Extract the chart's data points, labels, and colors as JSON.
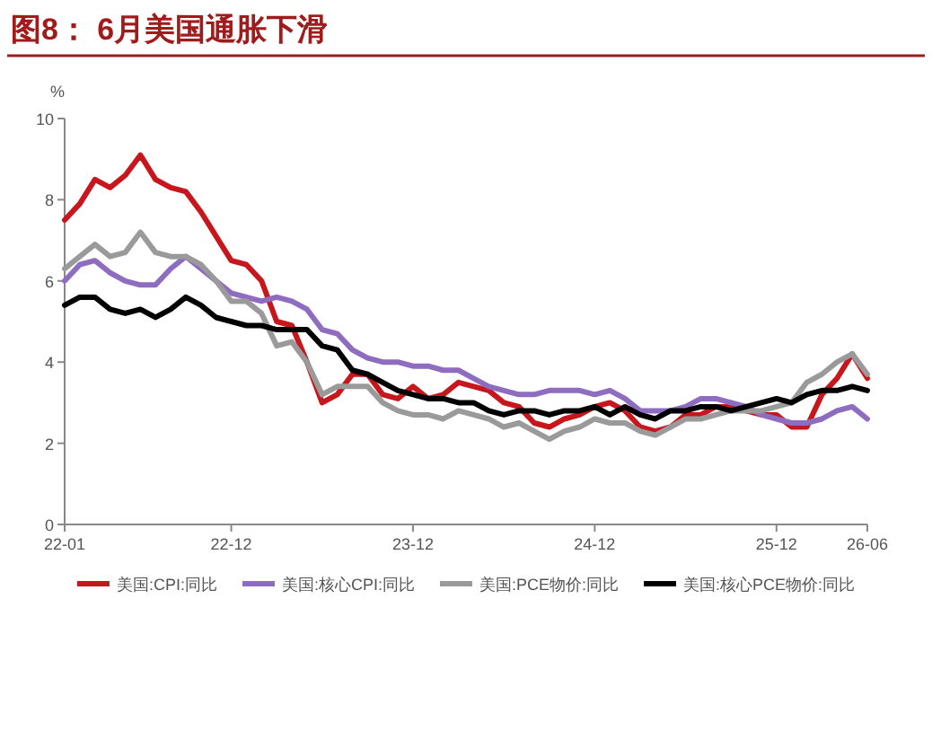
{
  "chart_data": {
    "type": "line",
    "title": "图8：  6月美国通胀下滑",
    "ylabel": "%",
    "categories": [
      "22-01",
      null,
      null,
      null,
      null,
      null,
      null,
      null,
      null,
      null,
      null,
      "22-12",
      null,
      null,
      null,
      null,
      null,
      null,
      null,
      null,
      null,
      null,
      null,
      "23-12",
      null,
      null,
      null,
      null,
      null,
      null,
      null,
      null,
      null,
      null,
      null,
      "24-12",
      null,
      null,
      null,
      null,
      null,
      null,
      null,
      null,
      null,
      null,
      null,
      "25-12",
      null,
      null,
      null,
      null,
      null,
      "26-06"
    ],
    "ylim": [
      0,
      10
    ],
    "yticks": [
      0,
      2,
      4,
      6,
      8,
      10
    ],
    "grid": false,
    "legend": "bottom",
    "marker": "none",
    "line_style": "solid",
    "series": [
      {
        "name": "美国:CPI:同比",
        "color": "#c8161d",
        "values": [
          7.5,
          7.9,
          8.5,
          8.3,
          8.6,
          9.1,
          8.5,
          8.3,
          8.2,
          7.7,
          7.1,
          6.5,
          6.4,
          6.0,
          5.0,
          4.9,
          4.0,
          3.0,
          3.2,
          3.7,
          3.7,
          3.2,
          3.1,
          3.4,
          3.1,
          3.2,
          3.5,
          3.4,
          3.3,
          3.0,
          2.9,
          2.5,
          2.4,
          2.6,
          2.7,
          2.9,
          3.0,
          2.8,
          2.4,
          2.3,
          2.4,
          2.7,
          2.7,
          2.9,
          2.9,
          2.8,
          2.7,
          2.7,
          2.4,
          2.4,
          3.2,
          3.6,
          4.2,
          3.6
        ]
      },
      {
        "name": "美国:核心CPI:同比",
        "color": "#8e6cc0",
        "values": [
          6.0,
          6.4,
          6.5,
          6.2,
          6.0,
          5.9,
          5.9,
          6.3,
          6.6,
          6.3,
          6.0,
          5.7,
          5.6,
          5.5,
          5.6,
          5.5,
          5.3,
          4.8,
          4.7,
          4.3,
          4.1,
          4.0,
          4.0,
          3.9,
          3.9,
          3.8,
          3.8,
          3.6,
          3.4,
          3.3,
          3.2,
          3.2,
          3.3,
          3.3,
          3.3,
          3.2,
          3.3,
          3.1,
          2.8,
          2.8,
          2.8,
          2.9,
          3.1,
          3.1,
          3.0,
          2.9,
          2.7,
          2.6,
          2.5,
          2.5,
          2.6,
          2.8,
          2.9,
          2.6
        ]
      },
      {
        "name": "美国:PCE物价:同比",
        "color": "#9a9a9a",
        "values": [
          6.3,
          6.6,
          6.9,
          6.6,
          6.7,
          7.2,
          6.7,
          6.6,
          6.6,
          6.4,
          6.0,
          5.5,
          5.5,
          5.2,
          4.4,
          4.5,
          4.0,
          3.2,
          3.4,
          3.4,
          3.4,
          3.0,
          2.8,
          2.7,
          2.7,
          2.6,
          2.8,
          2.7,
          2.6,
          2.4,
          2.5,
          2.3,
          2.1,
          2.3,
          2.4,
          2.6,
          2.5,
          2.5,
          2.3,
          2.2,
          2.4,
          2.6,
          2.6,
          2.7,
          2.8,
          2.8,
          2.8,
          2.9,
          3.0,
          3.5,
          3.7,
          4.0,
          4.2,
          3.7
        ]
      },
      {
        "name": "美国:核心PCE物价:同比",
        "color": "#000000",
        "values": [
          5.4,
          5.6,
          5.6,
          5.3,
          5.2,
          5.3,
          5.1,
          5.3,
          5.6,
          5.4,
          5.1,
          5.0,
          4.9,
          4.9,
          4.8,
          4.8,
          4.8,
          4.4,
          4.3,
          3.8,
          3.7,
          3.5,
          3.3,
          3.2,
          3.1,
          3.1,
          3.0,
          3.0,
          2.8,
          2.7,
          2.8,
          2.8,
          2.7,
          2.8,
          2.8,
          2.9,
          2.7,
          2.9,
          2.7,
          2.6,
          2.8,
          2.8,
          2.9,
          2.9,
          2.8,
          2.9,
          3.0,
          3.1,
          3.0,
          3.2,
          3.3,
          3.3,
          3.4,
          3.3
        ]
      }
    ]
  }
}
